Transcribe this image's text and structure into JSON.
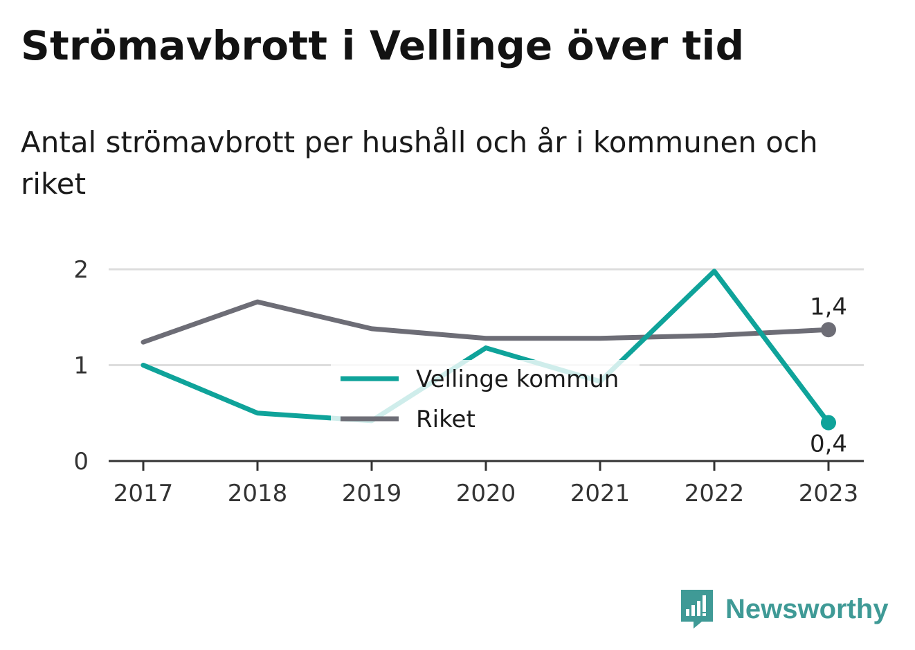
{
  "title": "Strömavbrott i Vellinge över tid",
  "subtitle": "Antal strömavbrott per hushåll och år i kommunen och riket",
  "brand": {
    "name": "Newsworthy",
    "icon": "newsworthy-logo-icon"
  },
  "colors": {
    "vellinge": "#0fa39a",
    "riket": "#6d6d76",
    "grid": "#dddddd",
    "axis": "#333333",
    "brand": "#3f9a96"
  },
  "chart_data": {
    "type": "line",
    "categories": [
      "2017",
      "2018",
      "2019",
      "2020",
      "2021",
      "2022",
      "2023"
    ],
    "ylim": [
      0,
      2
    ],
    "yticks": [
      "0",
      "1",
      "2"
    ],
    "grid": true,
    "legend_position": "center",
    "series": [
      {
        "name": "Vellinge kommun",
        "values": [
          1.0,
          0.5,
          0.42,
          1.18,
          0.83,
          1.98,
          0.4
        ],
        "end_label": "0,4"
      },
      {
        "name": "Riket",
        "values": [
          1.24,
          1.66,
          1.38,
          1.28,
          1.28,
          1.31,
          1.37
        ],
        "end_label": "1,4"
      }
    ]
  }
}
